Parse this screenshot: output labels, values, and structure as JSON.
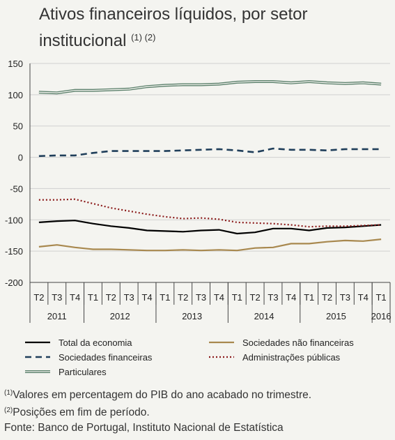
{
  "title": {
    "text": "Ativos financeiros líquidos, por setor institucional",
    "note_refs": "(1) (2)"
  },
  "chart_data": {
    "type": "line",
    "title": "Ativos financeiros líquidos, por setor institucional",
    "xlabel": "",
    "ylabel": "",
    "ylim": [
      -200,
      150
    ],
    "yticks": [
      150,
      100,
      50,
      0,
      -50,
      -100,
      -150,
      -200
    ],
    "grid": "horizontal",
    "legend_position": "bottom",
    "quarters": [
      "T2",
      "T3",
      "T4",
      "T1",
      "T2",
      "T3",
      "T4",
      "T1",
      "T2",
      "T3",
      "T4",
      "T1",
      "T2",
      "T3",
      "T4",
      "T1",
      "T2",
      "T3",
      "T4",
      "T1"
    ],
    "years": [
      {
        "label": "2011",
        "span": 3
      },
      {
        "label": "2012",
        "span": 4
      },
      {
        "label": "2013",
        "span": 4
      },
      {
        "label": "2014",
        "span": 4
      },
      {
        "label": "2015",
        "span": 4
      },
      {
        "label": "2016",
        "span": 1
      }
    ],
    "series": [
      {
        "name": "Total da economia",
        "color": "#000000",
        "style": "solid",
        "values": [
          -104,
          -102,
          -101,
          -106,
          -110,
          -113,
          -117,
          -118,
          -119,
          -117,
          -116,
          -122,
          -120,
          -114,
          -114,
          -117,
          -113,
          -112,
          -110,
          -108
        ]
      },
      {
        "name": "Sociedades não financeiras",
        "color": "#a8884e",
        "style": "solid",
        "values": [
          -143,
          -140,
          -144,
          -147,
          -147,
          -148,
          -149,
          -149,
          -148,
          -149,
          -148,
          -149,
          -145,
          -144,
          -138,
          -138,
          -135,
          -133,
          -134,
          -131
        ]
      },
      {
        "name": "Sociedades financeiras",
        "color": "#1f3e5a",
        "style": "dashed",
        "values": [
          2,
          3,
          3,
          7,
          10,
          10,
          10,
          10,
          11,
          12,
          13,
          11,
          8,
          14,
          12,
          12,
          11,
          13,
          13,
          13
        ]
      },
      {
        "name": "Administrações públicas",
        "color": "#8b1a1a",
        "style": "dotted",
        "values": [
          -68,
          -68,
          -67,
          -74,
          -81,
          -86,
          -91,
          -95,
          -98,
          -97,
          -99,
          -104,
          -105,
          -106,
          -108,
          -111,
          -110,
          -110,
          -109,
          -108
        ]
      },
      {
        "name": "Particulares",
        "color": "#5a7f6a",
        "style": "double",
        "values": [
          104,
          103,
          107,
          107,
          108,
          109,
          113,
          115,
          116,
          116,
          117,
          120,
          121,
          121,
          119,
          121,
          119,
          118,
          119,
          117
        ]
      }
    ]
  },
  "notes": {
    "note1_ref": "(1)",
    "note1": "Valores em percentagem do PIB do ano acabado no trimestre.",
    "note2_ref": "(2)",
    "note2": "Posições em fim de período.",
    "source": "Fonte: Banco de Portugal, Instituto Nacional de Estatística"
  }
}
